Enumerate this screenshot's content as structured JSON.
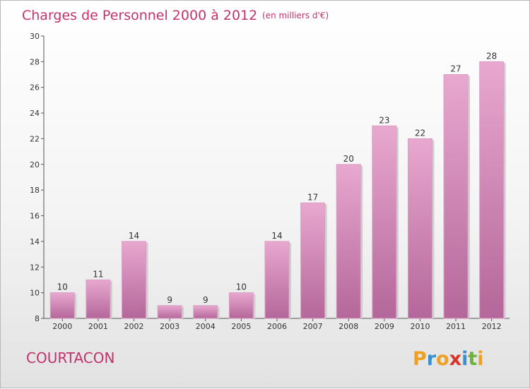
{
  "title": "Charges de Personnel 2000 à 2012",
  "subtitle": "(en milliers d'€)",
  "commune": "COURTACON",
  "logo": {
    "letters": [
      "P",
      "r",
      "o",
      "x",
      "i",
      "t",
      "i"
    ],
    "colors": [
      "#f0a020",
      "#3a8fd0",
      "#f0a020",
      "#d8342b",
      "#3a8fd0",
      "#6bb33a",
      "#f0a020"
    ]
  },
  "colors": {
    "accent": "#c2336b",
    "bar_top": "#e8a8cf",
    "bar_bottom": "#b4679a"
  },
  "chart_data": {
    "type": "bar",
    "title": "Charges de Personnel 2000 à 2012",
    "subtitle": "(en milliers d'€)",
    "categories": [
      "2000",
      "2001",
      "2002",
      "2003",
      "2004",
      "2005",
      "2006",
      "2007",
      "2008",
      "2009",
      "2010",
      "2011",
      "2012"
    ],
    "values": [
      10,
      11,
      14,
      9,
      9,
      10,
      14,
      17,
      20,
      23,
      22,
      27,
      28
    ],
    "ylim": [
      8,
      30
    ],
    "yticks": [
      8,
      10,
      12,
      14,
      16,
      18,
      20,
      22,
      24,
      26,
      28,
      30
    ],
    "xlabel": "",
    "ylabel": "",
    "grid": false,
    "legend": "none"
  }
}
